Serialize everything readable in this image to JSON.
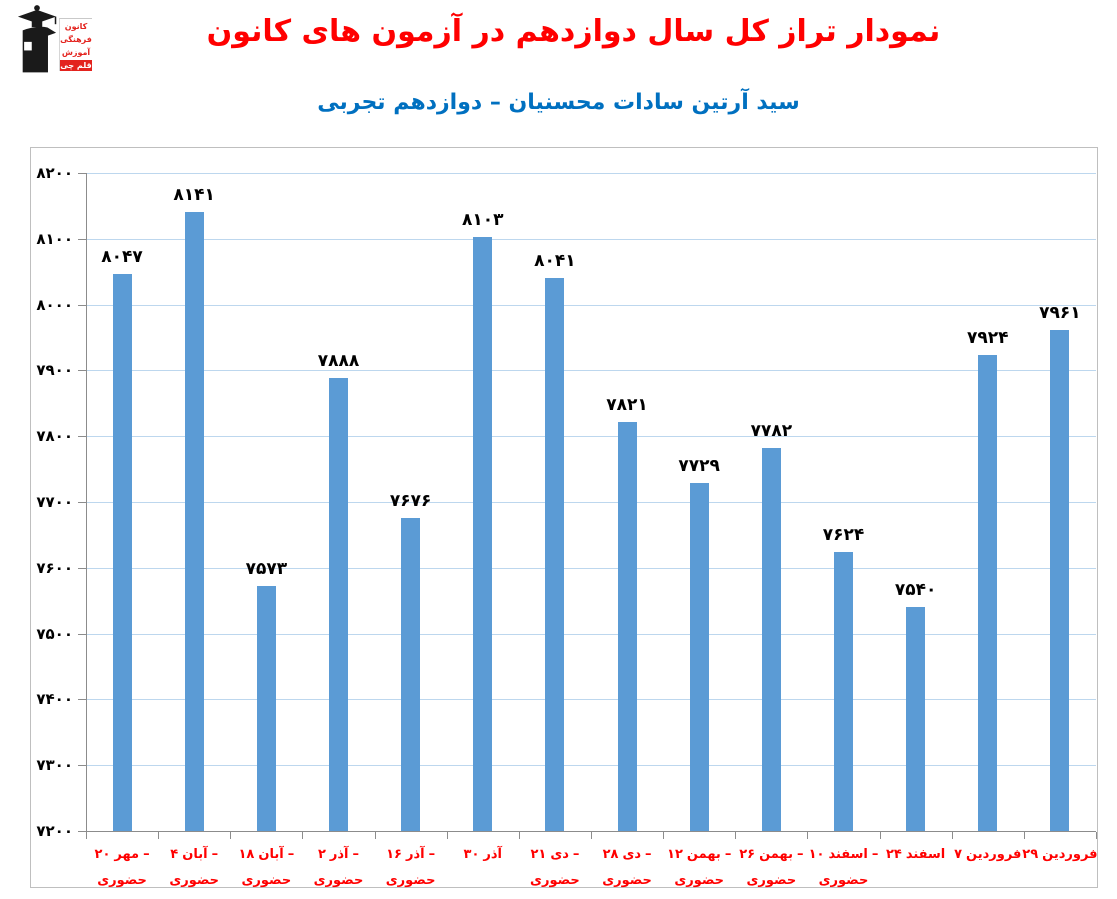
{
  "logo": {
    "org_lines": [
      "کانون",
      "فرهنگی",
      "آموزش"
    ],
    "badge": "قلم چی"
  },
  "header": {
    "title": "نمودار تراز کل سال دوازدهم در آزمون های کانون",
    "subtitle": "سید آرتین سادات محسنیان – دوازدهم تجربی"
  },
  "colors": {
    "title": "#FF0000",
    "subtitle": "#0070C0",
    "bar": "#5B9BD5",
    "grid": "#BDD7EE",
    "axis": "#8C8C8C",
    "x_label": "#FF0000",
    "value_label": "#000000",
    "chart_border": "#BFBFBF",
    "logo_red": "#E3231E",
    "logo_black": "#1A1A1A"
  },
  "chart_data": {
    "type": "bar",
    "title": "نمودار تراز کل سال دوازدهم در آزمون های کانون",
    "subtitle": "سید آرتین سادات محسنیان – دوازدهم تجربی",
    "xlabel": "",
    "ylabel": "",
    "ylim": [
      7200,
      8200
    ],
    "y_tick_step": 100,
    "y_ticks": [
      8200,
      8100,
      8000,
      7900,
      7800,
      7700,
      7600,
      7500,
      7400,
      7300,
      7200
    ],
    "y_tick_labels": [
      "۸۲۰۰",
      "۸۱۰۰",
      "۸۰۰۰",
      "۷۹۰۰",
      "۷۸۰۰",
      "۷۷۰۰",
      "۷۶۰۰",
      "۷۵۰۰",
      "۷۴۰۰",
      "۷۳۰۰",
      "۷۲۰۰"
    ],
    "grid": true,
    "legend": false,
    "categories": [
      {
        "day": "۲۰",
        "month": "مهر",
        "dash": "–",
        "line2": "حضوری"
      },
      {
        "day": "۴",
        "month": "آبان",
        "dash": "–",
        "line2": "حضوری"
      },
      {
        "day": "۱۸",
        "month": "آبان",
        "dash": "–",
        "line2": "حضوری"
      },
      {
        "day": "۲",
        "month": "آذر",
        "dash": "–",
        "line2": "حضوری"
      },
      {
        "day": "۱۶",
        "month": "آذر",
        "dash": "–",
        "line2": "حضوری"
      },
      {
        "day": "۳۰",
        "month": "آذر",
        "dash": "",
        "line2": ""
      },
      {
        "day": "۲۱",
        "month": "دی",
        "dash": "–",
        "line2": "حضوری"
      },
      {
        "day": "۲۸",
        "month": "دی",
        "dash": "–",
        "line2": "حضوری"
      },
      {
        "day": "۱۲",
        "month": "بهمن",
        "dash": "–",
        "line2": "حضوری"
      },
      {
        "day": "۲۶",
        "month": "بهمن",
        "dash": "–",
        "line2": "حضوری"
      },
      {
        "day": "۱۰",
        "month": "اسفند",
        "dash": "–",
        "line2": "حضوری"
      },
      {
        "day": "۲۴",
        "month": "اسفند",
        "dash": "",
        "line2": ""
      },
      {
        "day": "۷",
        "month": "فروردین",
        "dash": "",
        "line2": ""
      },
      {
        "day": "۲۹",
        "month": "فروردین",
        "dash": "",
        "line2": ""
      }
    ],
    "values": [
      8047,
      8141,
      7573,
      7888,
      7676,
      8103,
      8041,
      7821,
      7729,
      7782,
      7624,
      7540,
      7924,
      7961
    ],
    "value_labels": [
      "۸۰۴۷",
      "۸۱۴۱",
      "۷۵۷۳",
      "۷۸۸۸",
      "۷۶۷۶",
      "۸۱۰۳",
      "۸۰۴۱",
      "۷۸۲۱",
      "۷۷۲۹",
      "۷۷۸۲",
      "۷۶۲۴",
      "۷۵۴۰",
      "۷۹۲۴",
      "۷۹۶۱"
    ]
  }
}
